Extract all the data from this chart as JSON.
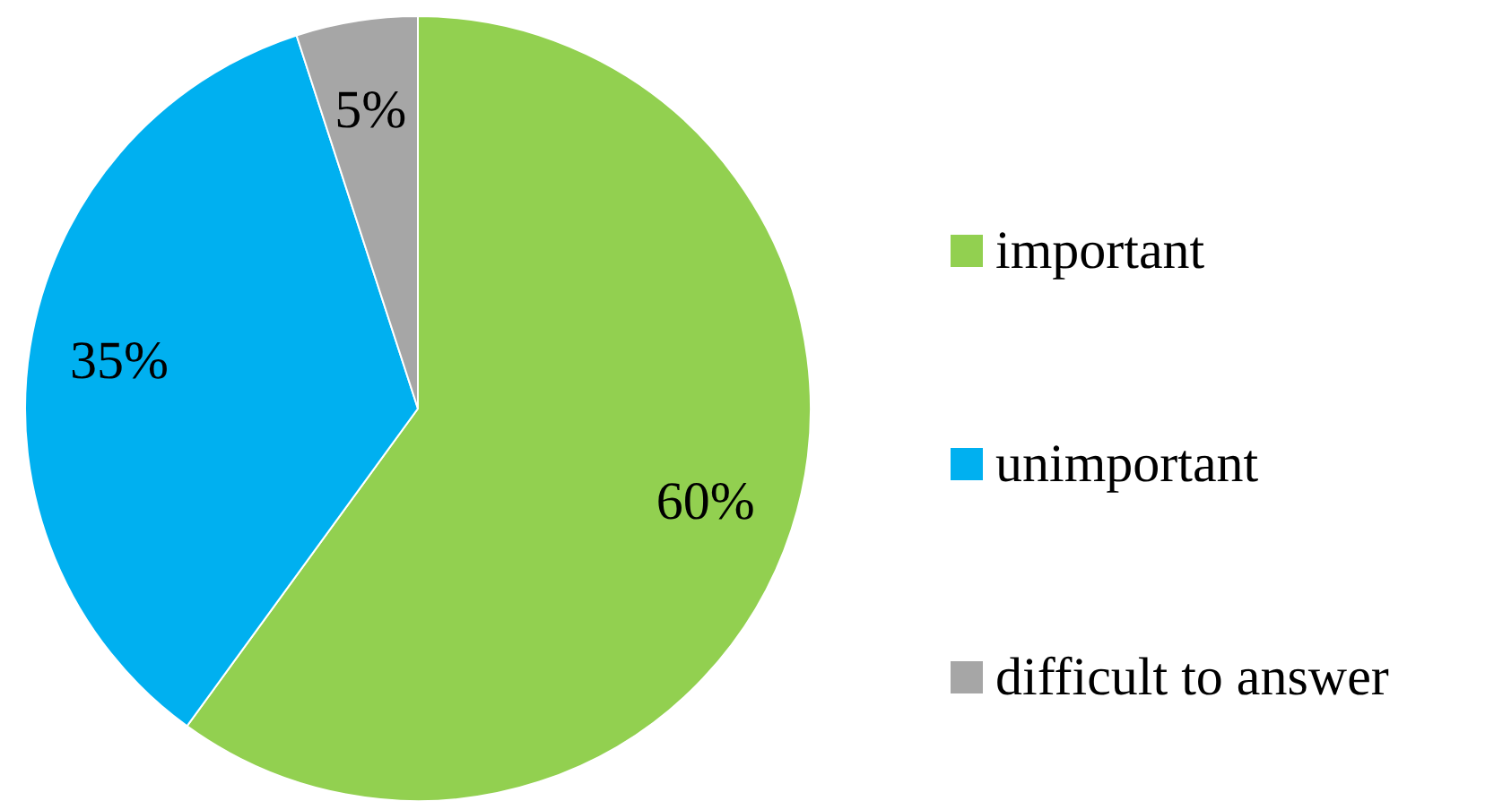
{
  "chart_data": {
    "type": "pie",
    "categories": [
      "important",
      "unimportant",
      "difficult to answer"
    ],
    "values": [
      60,
      35,
      5
    ],
    "colors": [
      "#92d050",
      "#00b0f0",
      "#a6a6a6"
    ],
    "value_labels": [
      "60%",
      "35%",
      "5%"
    ],
    "legend": "right"
  }
}
